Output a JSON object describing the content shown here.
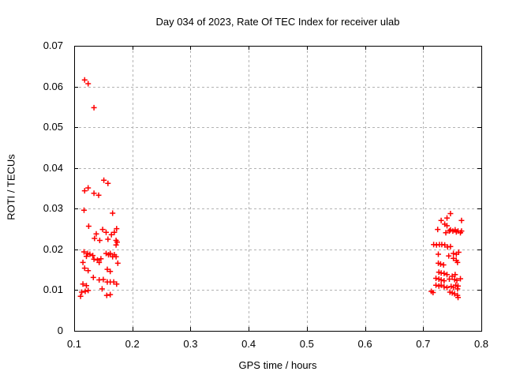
{
  "title": "Day 034 of 2023, Rate Of TEC Index for receiver ulab",
  "colors": {
    "background": "#ffffff",
    "axis": "#000000",
    "grid": "#b3b3b3",
    "marker": "#ff0000",
    "text": "#000000"
  },
  "chart_data": {
    "type": "scatter",
    "title": "Day 034 of 2023, Rate Of TEC Index for receiver ulab",
    "xlabel": "GPS time / hours",
    "ylabel": "ROTI / TECUs",
    "xlim": [
      0.1,
      0.8
    ],
    "ylim": [
      0,
      0.07
    ],
    "xticks": [
      0.1,
      0.2,
      0.3,
      0.4,
      0.5,
      0.6,
      0.7,
      0.8
    ],
    "xtick_labels": [
      "0.1",
      "0.2",
      "0.3",
      "0.4",
      "0.5",
      "0.6",
      "0.7",
      "0.8"
    ],
    "yticks": [
      0,
      0.01,
      0.02,
      0.03,
      0.04,
      0.05,
      0.06,
      0.07
    ],
    "ytick_labels": [
      "0",
      "0.01",
      "0.02",
      "0.03",
      "0.04",
      "0.05",
      "0.06",
      "0.07"
    ],
    "grid": true,
    "legend": "none",
    "marker": {
      "shape": "plus",
      "color": "#ff0000",
      "size": 7
    },
    "series": [
      {
        "name": "ROTI",
        "points": [
          [
            0.118,
            0.0616
          ],
          [
            0.124,
            0.0607
          ],
          [
            0.134,
            0.0548
          ],
          [
            0.151,
            0.037
          ],
          [
            0.158,
            0.0362
          ],
          [
            0.118,
            0.0344
          ],
          [
            0.124,
            0.0351
          ],
          [
            0.134,
            0.0338
          ],
          [
            0.142,
            0.0333
          ],
          [
            0.117,
            0.0296
          ],
          [
            0.166,
            0.0289
          ],
          [
            0.125,
            0.0257
          ],
          [
            0.149,
            0.0249
          ],
          [
            0.173,
            0.0251
          ],
          [
            0.138,
            0.0238
          ],
          [
            0.155,
            0.0242
          ],
          [
            0.164,
            0.0236
          ],
          [
            0.169,
            0.0242
          ],
          [
            0.135,
            0.0227
          ],
          [
            0.144,
            0.0222
          ],
          [
            0.158,
            0.0225
          ],
          [
            0.172,
            0.0222
          ],
          [
            0.174,
            0.0218
          ],
          [
            0.117,
            0.0194
          ],
          [
            0.121,
            0.0183
          ],
          [
            0.123,
            0.019
          ],
          [
            0.127,
            0.0188
          ],
          [
            0.132,
            0.0185
          ],
          [
            0.134,
            0.0176
          ],
          [
            0.115,
            0.0168
          ],
          [
            0.14,
            0.0174
          ],
          [
            0.143,
            0.0168
          ],
          [
            0.146,
            0.0177
          ],
          [
            0.155,
            0.019
          ],
          [
            0.159,
            0.0187
          ],
          [
            0.162,
            0.019
          ],
          [
            0.166,
            0.0182
          ],
          [
            0.169,
            0.0187
          ],
          [
            0.172,
            0.0182
          ],
          [
            0.172,
            0.0211
          ],
          [
            0.175,
            0.0166
          ],
          [
            0.118,
            0.0154
          ],
          [
            0.124,
            0.0148
          ],
          [
            0.157,
            0.0151
          ],
          [
            0.162,
            0.0146
          ],
          [
            0.133,
            0.0131
          ],
          [
            0.143,
            0.0125
          ],
          [
            0.15,
            0.0126
          ],
          [
            0.157,
            0.012
          ],
          [
            0.162,
            0.012
          ],
          [
            0.168,
            0.012
          ],
          [
            0.173,
            0.0115
          ],
          [
            0.115,
            0.0115
          ],
          [
            0.121,
            0.0111
          ],
          [
            0.148,
            0.0103
          ],
          [
            0.113,
            0.0095
          ],
          [
            0.119,
            0.0097
          ],
          [
            0.124,
            0.0099
          ],
          [
            0.156,
            0.0087
          ],
          [
            0.162,
            0.0089
          ],
          [
            0.111,
            0.0085
          ],
          [
            0.747,
            0.0288
          ],
          [
            0.741,
            0.0277
          ],
          [
            0.731,
            0.0271
          ],
          [
            0.766,
            0.0271
          ],
          [
            0.737,
            0.0262
          ],
          [
            0.741,
            0.0258
          ],
          [
            0.725,
            0.0249
          ],
          [
            0.739,
            0.0241
          ],
          [
            0.745,
            0.0245
          ],
          [
            0.747,
            0.0248
          ],
          [
            0.751,
            0.0245
          ],
          [
            0.755,
            0.0248
          ],
          [
            0.757,
            0.0243
          ],
          [
            0.76,
            0.0245
          ],
          [
            0.764,
            0.0241
          ],
          [
            0.766,
            0.0245
          ],
          [
            0.718,
            0.0212
          ],
          [
            0.723,
            0.0211
          ],
          [
            0.728,
            0.0212
          ],
          [
            0.732,
            0.0212
          ],
          [
            0.737,
            0.0211
          ],
          [
            0.742,
            0.0206
          ],
          [
            0.747,
            0.0207
          ],
          [
            0.726,
            0.0188
          ],
          [
            0.744,
            0.0184
          ],
          [
            0.752,
            0.019
          ],
          [
            0.757,
            0.0188
          ],
          [
            0.761,
            0.0193
          ],
          [
            0.752,
            0.0178
          ],
          [
            0.757,
            0.0173
          ],
          [
            0.726,
            0.0166
          ],
          [
            0.73,
            0.0164
          ],
          [
            0.735,
            0.0162
          ],
          [
            0.759,
            0.0168
          ],
          [
            0.727,
            0.0144
          ],
          [
            0.731,
            0.0142
          ],
          [
            0.736,
            0.0141
          ],
          [
            0.741,
            0.0138
          ],
          [
            0.75,
            0.0134
          ],
          [
            0.755,
            0.0138
          ],
          [
            0.722,
            0.0129
          ],
          [
            0.727,
            0.0127
          ],
          [
            0.731,
            0.0125
          ],
          [
            0.736,
            0.0123
          ],
          [
            0.745,
            0.0127
          ],
          [
            0.754,
            0.0126
          ],
          [
            0.758,
            0.0124
          ],
          [
            0.764,
            0.0128
          ],
          [
            0.722,
            0.0112
          ],
          [
            0.727,
            0.011
          ],
          [
            0.731,
            0.0112
          ],
          [
            0.736,
            0.0108
          ],
          [
            0.741,
            0.0106
          ],
          [
            0.748,
            0.0109
          ],
          [
            0.752,
            0.0107
          ],
          [
            0.756,
            0.0112
          ],
          [
            0.76,
            0.011
          ],
          [
            0.759,
            0.0103
          ],
          [
            0.714,
            0.0097
          ],
          [
            0.717,
            0.0094
          ],
          [
            0.746,
            0.0095
          ],
          [
            0.75,
            0.0093
          ],
          [
            0.754,
            0.0091
          ],
          [
            0.759,
            0.0087
          ],
          [
            0.76,
            0.0082
          ]
        ]
      }
    ]
  }
}
